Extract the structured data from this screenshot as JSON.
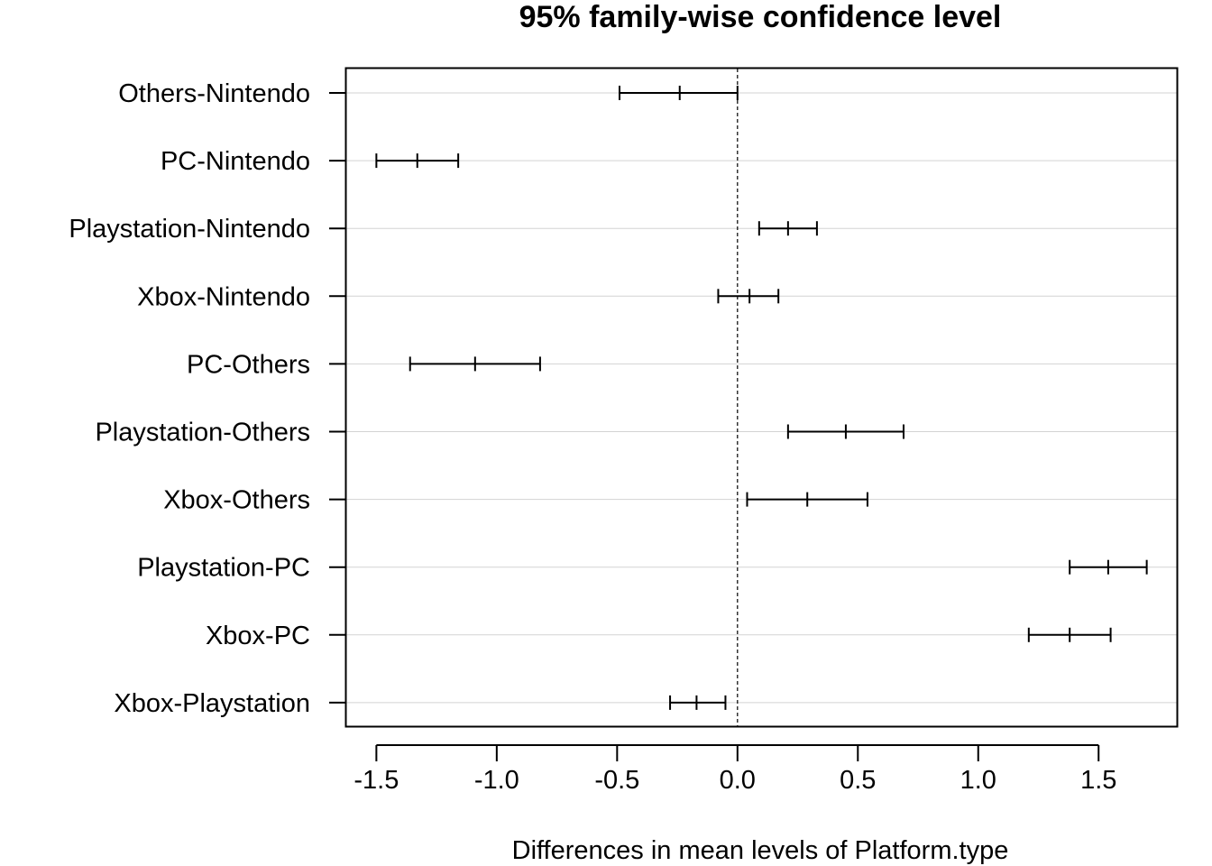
{
  "chart_data": {
    "type": "interval",
    "title": "95% family-wise confidence level",
    "xlabel": "Differences in mean levels of Platform.type",
    "ylabel": "",
    "xlim": [
      -1.625,
      1.825
    ],
    "x_ticks": [
      -1.5,
      -1.0,
      -0.5,
      0.0,
      0.5,
      1.0,
      1.5
    ],
    "x_tick_labels": [
      "-1.5",
      "-1.0",
      "-0.5",
      "0.0",
      "0.5",
      "1.0",
      "1.5"
    ],
    "reference_line": 0.0,
    "grid": true,
    "categories": [
      "Others-Nintendo",
      "PC-Nintendo",
      "Playstation-Nintendo",
      "Xbox-Nintendo",
      "PC-Others",
      "Playstation-Others",
      "Xbox-Others",
      "Playstation-PC",
      "Xbox-PC",
      "Xbox-Playstation"
    ],
    "lower": [
      -0.49,
      -1.5,
      0.09,
      -0.08,
      -1.36,
      0.21,
      0.04,
      1.38,
      1.21,
      -0.28
    ],
    "estimate": [
      -0.24,
      -1.33,
      0.21,
      0.05,
      -1.09,
      0.45,
      0.29,
      1.54,
      1.38,
      -0.17
    ],
    "upper": [
      0.0,
      -1.16,
      0.33,
      0.17,
      -0.82,
      0.69,
      0.54,
      1.7,
      1.55,
      -0.05
    ]
  }
}
